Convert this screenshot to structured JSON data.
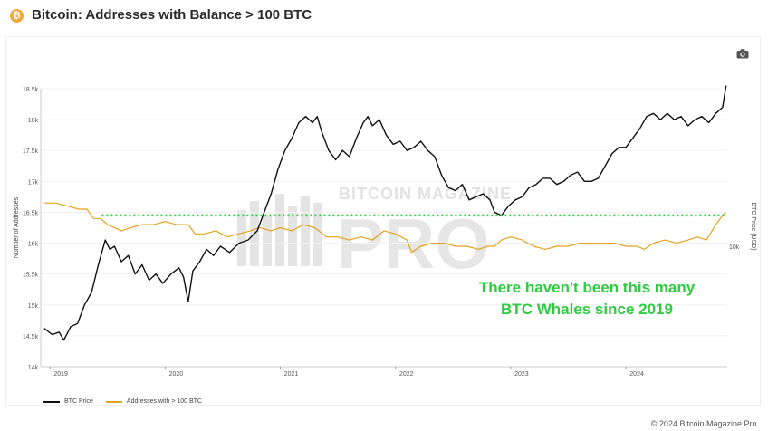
{
  "header": {
    "title": "Bitcoin: Addresses with Balance > 100 BTC",
    "badge": "₿"
  },
  "footer": {
    "copyright": "© 2024 Bitcoin Magazine Pro."
  },
  "watermark": {
    "line1": "BITCOIN MAGAZINE",
    "line2": "PRO"
  },
  "annotation": {
    "line1": "There haven't been this many",
    "line2": "BTC Whales since 2019"
  },
  "icons": {
    "camera": "camera-icon"
  },
  "colors": {
    "btc_price": "#111111",
    "addresses": "#e2a31f",
    "reference_line": "#2ecc40",
    "annotation": "#2ecc40"
  },
  "chart_data": {
    "type": "line",
    "title": "Bitcoin: Addresses with Balance > 100 BTC",
    "ylabel_left": "Number of Addresses",
    "ylabel_right": "BTC Price (USD)",
    "yticks_left": [
      "18.5k",
      "18k",
      "17.5k",
      "17k",
      "16.5k",
      "16k",
      "15.5k",
      "15k",
      "14.5k",
      "14k"
    ],
    "ylim_left": [
      14000,
      18500
    ],
    "yticks_right": [
      "10k"
    ],
    "xticks": [
      "2019",
      "2020",
      "2021",
      "2022",
      "2023",
      "2024"
    ],
    "xlim": [
      2018.92,
      2024.88
    ],
    "legend_position": "bottom-left",
    "reference_line": {
      "y": 16450,
      "style": "dotted",
      "x_start": 2019.45
    },
    "series": [
      {
        "name": "BTC Price",
        "axis": "left",
        "values": [
          [
            2018.95,
            14620
          ],
          [
            2019.02,
            14520
          ],
          [
            2019.08,
            14560
          ],
          [
            2019.12,
            14430
          ],
          [
            2019.18,
            14650
          ],
          [
            2019.24,
            14700
          ],
          [
            2019.3,
            15000
          ],
          [
            2019.36,
            15200
          ],
          [
            2019.42,
            15650
          ],
          [
            2019.48,
            16050
          ],
          [
            2019.52,
            15900
          ],
          [
            2019.56,
            15950
          ],
          [
            2019.62,
            15700
          ],
          [
            2019.68,
            15800
          ],
          [
            2019.74,
            15500
          ],
          [
            2019.8,
            15650
          ],
          [
            2019.86,
            15400
          ],
          [
            2019.92,
            15500
          ],
          [
            2019.98,
            15350
          ],
          [
            2020.05,
            15500
          ],
          [
            2020.12,
            15600
          ],
          [
            2020.16,
            15450
          ],
          [
            2020.2,
            15050
          ],
          [
            2020.24,
            15550
          ],
          [
            2020.3,
            15700
          ],
          [
            2020.36,
            15900
          ],
          [
            2020.42,
            15800
          ],
          [
            2020.48,
            15950
          ],
          [
            2020.56,
            15850
          ],
          [
            2020.64,
            16000
          ],
          [
            2020.72,
            16050
          ],
          [
            2020.8,
            16200
          ],
          [
            2020.86,
            16500
          ],
          [
            2020.92,
            16800
          ],
          [
            2020.98,
            17200
          ],
          [
            2021.04,
            17500
          ],
          [
            2021.1,
            17700
          ],
          [
            2021.16,
            17950
          ],
          [
            2021.22,
            18050
          ],
          [
            2021.28,
            17950
          ],
          [
            2021.32,
            18050
          ],
          [
            2021.36,
            17800
          ],
          [
            2021.42,
            17500
          ],
          [
            2021.48,
            17350
          ],
          [
            2021.54,
            17500
          ],
          [
            2021.6,
            17400
          ],
          [
            2021.66,
            17700
          ],
          [
            2021.72,
            17950
          ],
          [
            2021.76,
            18050
          ],
          [
            2021.8,
            17900
          ],
          [
            2021.86,
            18000
          ],
          [
            2021.92,
            17750
          ],
          [
            2021.98,
            17600
          ],
          [
            2022.04,
            17650
          ],
          [
            2022.1,
            17500
          ],
          [
            2022.16,
            17550
          ],
          [
            2022.22,
            17650
          ],
          [
            2022.28,
            17500
          ],
          [
            2022.34,
            17400
          ],
          [
            2022.4,
            17100
          ],
          [
            2022.46,
            16900
          ],
          [
            2022.52,
            16850
          ],
          [
            2022.58,
            16950
          ],
          [
            2022.64,
            16700
          ],
          [
            2022.7,
            16750
          ],
          [
            2022.76,
            16800
          ],
          [
            2022.82,
            16700
          ],
          [
            2022.86,
            16500
          ],
          [
            2022.92,
            16450
          ],
          [
            2022.98,
            16600
          ],
          [
            2023.04,
            16700
          ],
          [
            2023.1,
            16750
          ],
          [
            2023.16,
            16900
          ],
          [
            2023.22,
            16950
          ],
          [
            2023.28,
            17050
          ],
          [
            2023.34,
            17050
          ],
          [
            2023.4,
            16950
          ],
          [
            2023.46,
            17000
          ],
          [
            2023.52,
            17100
          ],
          [
            2023.58,
            17150
          ],
          [
            2023.64,
            17000
          ],
          [
            2023.7,
            17000
          ],
          [
            2023.76,
            17050
          ],
          [
            2023.82,
            17250
          ],
          [
            2023.88,
            17450
          ],
          [
            2023.94,
            17550
          ],
          [
            2024.0,
            17550
          ],
          [
            2024.06,
            17700
          ],
          [
            2024.12,
            17850
          ],
          [
            2024.18,
            18050
          ],
          [
            2024.24,
            18100
          ],
          [
            2024.3,
            18000
          ],
          [
            2024.36,
            18100
          ],
          [
            2024.42,
            18000
          ],
          [
            2024.48,
            18050
          ],
          [
            2024.54,
            17900
          ],
          [
            2024.6,
            18000
          ],
          [
            2024.66,
            18050
          ],
          [
            2024.72,
            17950
          ],
          [
            2024.78,
            18100
          ],
          [
            2024.84,
            18200
          ],
          [
            2024.87,
            18550
          ]
        ]
      },
      {
        "name": "Addresses with > 100 BTC",
        "axis": "left",
        "values": [
          [
            2018.95,
            16650
          ],
          [
            2019.05,
            16650
          ],
          [
            2019.15,
            16600
          ],
          [
            2019.25,
            16550
          ],
          [
            2019.32,
            16550
          ],
          [
            2019.38,
            16400
          ],
          [
            2019.44,
            16400
          ],
          [
            2019.5,
            16300
          ],
          [
            2019.56,
            16250
          ],
          [
            2019.62,
            16200
          ],
          [
            2019.7,
            16250
          ],
          [
            2019.8,
            16300
          ],
          [
            2019.9,
            16300
          ],
          [
            2020.0,
            16350
          ],
          [
            2020.1,
            16300
          ],
          [
            2020.2,
            16300
          ],
          [
            2020.26,
            16150
          ],
          [
            2020.34,
            16150
          ],
          [
            2020.44,
            16200
          ],
          [
            2020.54,
            16100
          ],
          [
            2020.64,
            16150
          ],
          [
            2020.74,
            16200
          ],
          [
            2020.82,
            16250
          ],
          [
            2020.92,
            16200
          ],
          [
            2021.0,
            16250
          ],
          [
            2021.1,
            16200
          ],
          [
            2021.2,
            16300
          ],
          [
            2021.3,
            16250
          ],
          [
            2021.4,
            16100
          ],
          [
            2021.5,
            16100
          ],
          [
            2021.6,
            16050
          ],
          [
            2021.7,
            16100
          ],
          [
            2021.8,
            16050
          ],
          [
            2021.9,
            16200
          ],
          [
            2022.0,
            16150
          ],
          [
            2022.1,
            16050
          ],
          [
            2022.14,
            15850
          ],
          [
            2022.22,
            15950
          ],
          [
            2022.32,
            16000
          ],
          [
            2022.42,
            16000
          ],
          [
            2022.52,
            15950
          ],
          [
            2022.62,
            15950
          ],
          [
            2022.72,
            15900
          ],
          [
            2022.8,
            15950
          ],
          [
            2022.86,
            15950
          ],
          [
            2022.92,
            16050
          ],
          [
            2023.0,
            16100
          ],
          [
            2023.1,
            16050
          ],
          [
            2023.2,
            15950
          ],
          [
            2023.3,
            15900
          ],
          [
            2023.4,
            15950
          ],
          [
            2023.5,
            15950
          ],
          [
            2023.6,
            16000
          ],
          [
            2023.7,
            16000
          ],
          [
            2023.8,
            16000
          ],
          [
            2023.9,
            16000
          ],
          [
            2024.0,
            15950
          ],
          [
            2024.1,
            15950
          ],
          [
            2024.16,
            15900
          ],
          [
            2024.24,
            16000
          ],
          [
            2024.34,
            16050
          ],
          [
            2024.44,
            16000
          ],
          [
            2024.54,
            16050
          ],
          [
            2024.62,
            16100
          ],
          [
            2024.7,
            16050
          ],
          [
            2024.78,
            16300
          ],
          [
            2024.84,
            16450
          ],
          [
            2024.87,
            16500
          ]
        ]
      }
    ]
  }
}
